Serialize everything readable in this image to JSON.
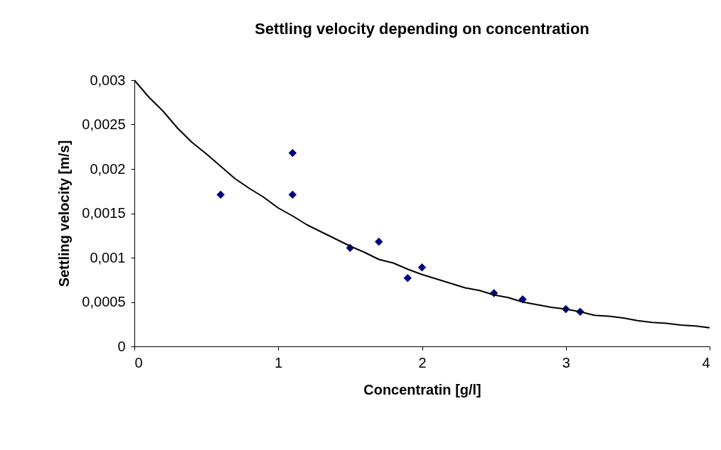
{
  "chart_data": {
    "type": "scatter",
    "title": "Settling velocity depending on concentration",
    "xlabel": "Concentratin [g/l]",
    "ylabel": "Settling velocity [m/s]",
    "xlim": [
      0,
      4
    ],
    "xticks": [
      0,
      1,
      2,
      3,
      4
    ],
    "ylim": [
      0,
      0.003
    ],
    "yticks": [
      {
        "value": 0,
        "label": "0"
      },
      {
        "value": 0.0005,
        "label": "0,0005"
      },
      {
        "value": 0.001,
        "label": "0,001"
      },
      {
        "value": 0.0015,
        "label": "0,0015"
      },
      {
        "value": 0.002,
        "label": "0,002"
      },
      {
        "value": 0.0025,
        "label": "0,0025"
      },
      {
        "value": 0.003,
        "label": "0,003"
      }
    ],
    "grid": false,
    "series": [
      {
        "marker": "diamond",
        "color": "#000080",
        "x": [
          0.6,
          1.1,
          1.1,
          1.5,
          1.7,
          1.9,
          2.0,
          2.5,
          2.7,
          3.0,
          3.1
        ],
        "values": [
          0.00171,
          0.00218,
          0.00171,
          0.00111,
          0.00118,
          0.00077,
          0.00089,
          0.0006,
          0.00053,
          0.00042,
          0.00039
        ]
      },
      {
        "type": "line",
        "marker": "none",
        "line_style": "solid",
        "color": "#000000",
        "x": [
          0,
          0.1,
          0.2,
          0.3,
          0.4,
          0.5,
          0.6,
          0.7,
          0.8,
          0.9,
          1.0,
          1.1,
          1.2,
          1.3,
          1.4,
          1.5,
          1.6,
          1.7,
          1.8,
          1.9,
          2.0,
          2.1,
          2.2,
          2.3,
          2.4,
          2.5,
          2.6,
          2.7,
          2.8,
          2.9,
          3.0,
          3.1,
          3.2,
          3.3,
          3.4,
          3.5,
          3.6,
          3.7,
          3.8,
          3.9,
          4.0
        ],
        "values": [
          0.003,
          0.00281,
          0.00265,
          0.00246,
          0.0023,
          0.00217,
          0.00203,
          0.00189,
          0.00178,
          0.00168,
          0.00156,
          0.00147,
          0.00137,
          0.00129,
          0.00121,
          0.00113,
          0.00106,
          0.00098,
          0.00094,
          0.00087,
          0.00081,
          0.00076,
          0.00071,
          0.00066,
          0.00063,
          0.00058,
          0.00055,
          0.0005,
          0.00047,
          0.00044,
          0.00042,
          0.00039,
          0.00035,
          0.00034,
          0.00032,
          0.00029,
          0.00027,
          0.00026,
          0.00024,
          0.00023,
          0.00021
        ]
      }
    ]
  }
}
